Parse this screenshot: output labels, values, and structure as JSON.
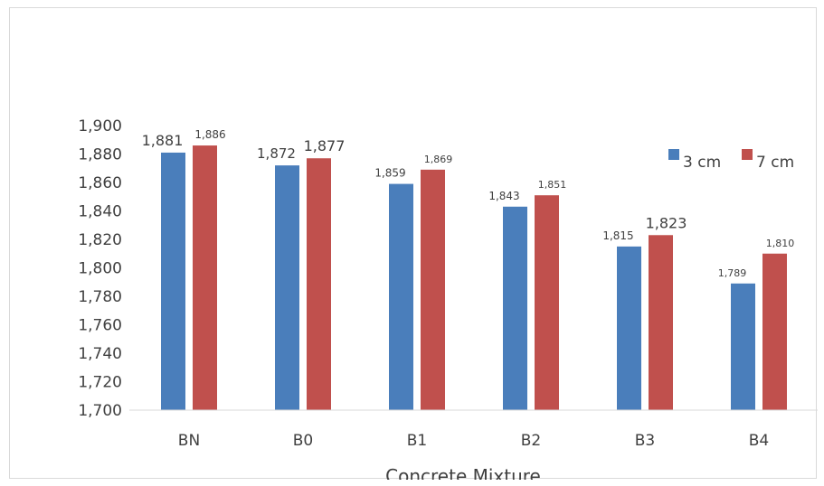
{
  "chart_data": {
    "type": "bar",
    "categories": [
      "BN",
      "B0",
      "B1",
      "B2",
      "B3",
      "B4"
    ],
    "series": [
      {
        "name": "3 cm",
        "color": "#4a7ebb",
        "values": [
          1881,
          1872,
          1859,
          1843,
          1815,
          1789
        ],
        "labels": [
          "1,881",
          "1,872",
          "1,859",
          "1,843",
          "1,815",
          "1,789"
        ]
      },
      {
        "name": "7 cm",
        "color": "#c0504d",
        "values": [
          1886,
          1877,
          1869,
          1851,
          1823,
          1810
        ],
        "labels": [
          "1,886",
          "1,877",
          "1,869",
          "1,851",
          "1,823",
          "1,810"
        ]
      }
    ],
    "y_ticks": [
      "1,700",
      "1,720",
      "1,740",
      "1,760",
      "1,780",
      "1,800",
      "1,820",
      "1,840",
      "1,860",
      "1,880",
      "1,900"
    ],
    "ylim": [
      1700,
      1900
    ],
    "xlabel": "Concrete Mixture",
    "ylabel": "",
    "legend_position": "right",
    "grid": false
  }
}
